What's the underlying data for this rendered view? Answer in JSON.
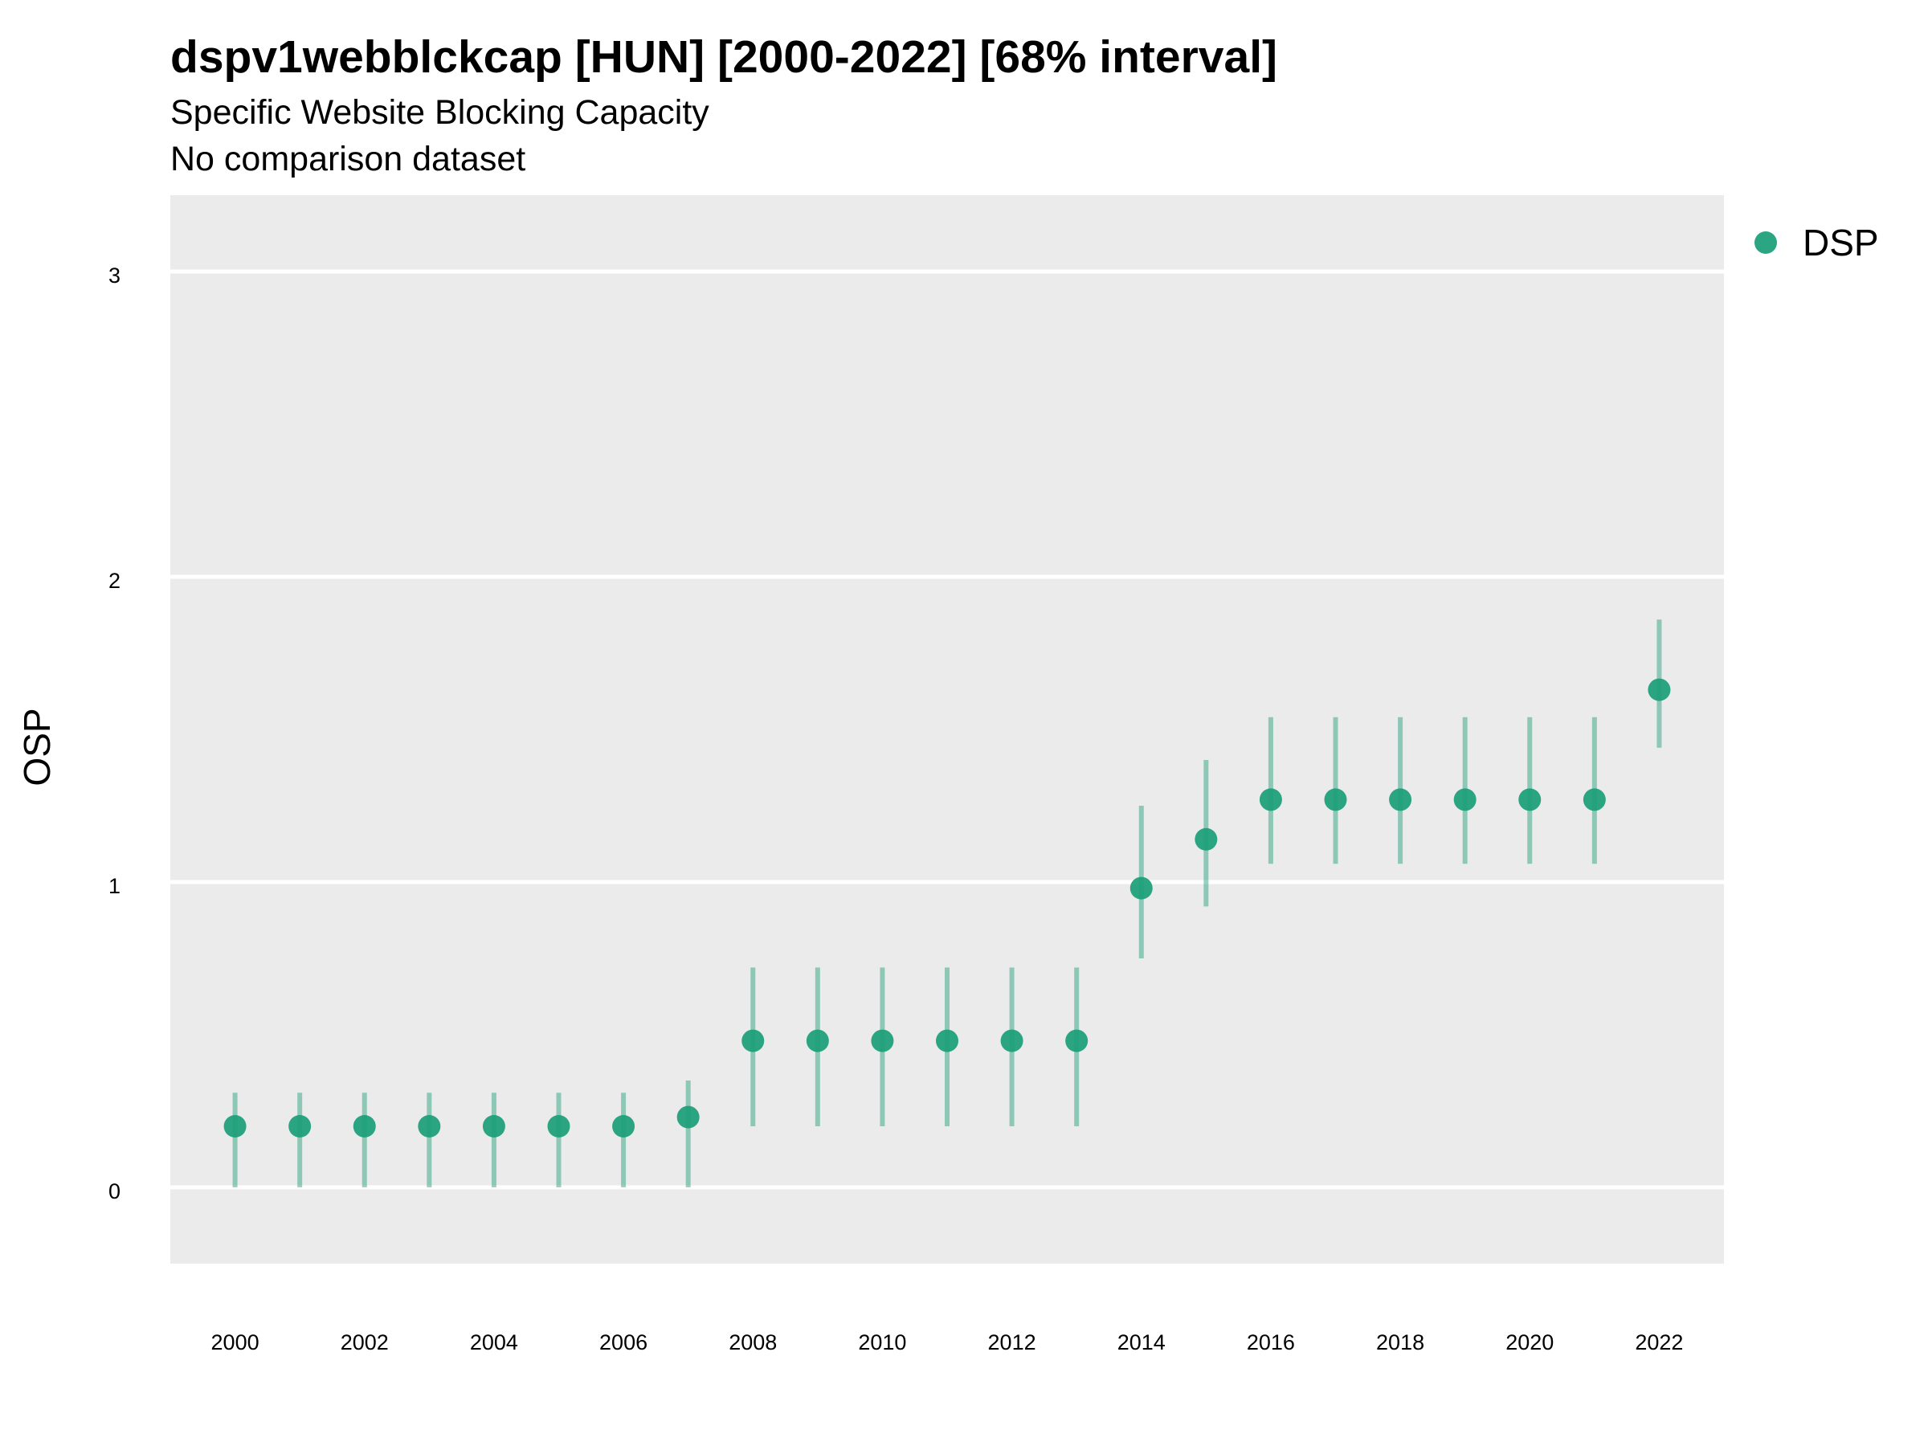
{
  "chart_data": {
    "type": "scatter",
    "title": "dspv1webblckcap [HUN] [2000-2022] [68% interval]",
    "subtitle": "Specific Website Blocking Capacity",
    "subtitle2": "No comparison dataset",
    "xlabel": "",
    "ylabel": "OSP",
    "xlim": [
      1999,
      2023
    ],
    "ylim": [
      -0.25,
      3.25
    ],
    "x_ticks": [
      2000,
      2002,
      2004,
      2006,
      2008,
      2010,
      2012,
      2014,
      2016,
      2018,
      2020,
      2022
    ],
    "y_ticks": [
      0,
      1,
      2,
      3
    ],
    "grid": true,
    "legend_position": "right",
    "series": [
      {
        "name": "DSP",
        "color": "#1a9e77",
        "x": [
          2000,
          2001,
          2002,
          2003,
          2004,
          2005,
          2006,
          2007,
          2008,
          2009,
          2010,
          2011,
          2012,
          2013,
          2014,
          2015,
          2016,
          2017,
          2018,
          2019,
          2020,
          2021,
          2022
        ],
        "y": [
          0.2,
          0.2,
          0.2,
          0.2,
          0.2,
          0.2,
          0.2,
          0.23,
          0.48,
          0.48,
          0.48,
          0.48,
          0.48,
          0.48,
          0.98,
          1.14,
          1.27,
          1.27,
          1.27,
          1.27,
          1.27,
          1.27,
          1.63
        ],
        "lower": [
          0.0,
          0.0,
          0.0,
          0.0,
          0.0,
          0.0,
          0.0,
          0.0,
          0.2,
          0.2,
          0.2,
          0.2,
          0.2,
          0.2,
          0.75,
          0.92,
          1.06,
          1.06,
          1.06,
          1.06,
          1.06,
          1.06,
          1.44
        ],
        "upper": [
          0.31,
          0.31,
          0.31,
          0.31,
          0.31,
          0.31,
          0.31,
          0.35,
          0.72,
          0.72,
          0.72,
          0.72,
          0.72,
          0.72,
          1.25,
          1.4,
          1.54,
          1.54,
          1.54,
          1.54,
          1.54,
          1.54,
          1.86
        ]
      }
    ]
  },
  "colors": {
    "panel": "#ebebeb",
    "grid": "#ffffff",
    "point": "#1a9e77",
    "interval": "#1a9e77"
  }
}
